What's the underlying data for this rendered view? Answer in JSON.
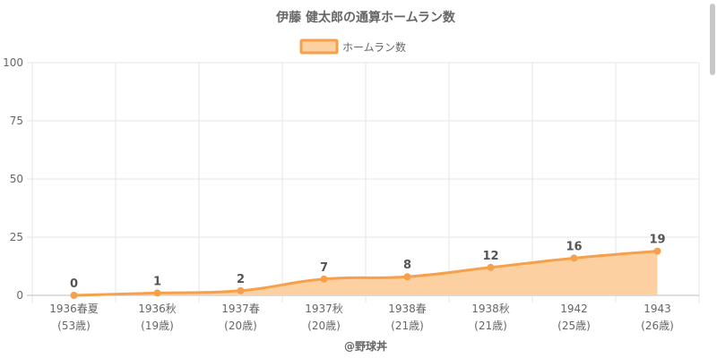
{
  "colors": {
    "line": "#f7a04b",
    "fill": "#fdd0a2",
    "grid": "#e6e6e6",
    "text": "#666666"
  },
  "chart_data": {
    "type": "area",
    "title": "伊藤 健太郎の通算ホームラン数",
    "categories": [
      "1936春夏",
      "1936秋",
      "1937春",
      "1937秋",
      "1938春",
      "1938秋",
      "1942",
      "1943"
    ],
    "sub_labels": [
      "(53歳)",
      "(19歳)",
      "(20歳)",
      "(20歳)",
      "(21歳)",
      "(21歳)",
      "(25歳)",
      "(26歳)"
    ],
    "series": [
      {
        "name": "ホームラン数",
        "values": [
          0,
          1,
          2,
          7,
          8,
          12,
          16,
          19
        ]
      }
    ],
    "ylim": [
      0,
      100
    ],
    "yticks": [
      0,
      25,
      50,
      75,
      100
    ],
    "legend_position": "top-center",
    "grid": true
  },
  "footer": {
    "credit": "@野球丼"
  }
}
